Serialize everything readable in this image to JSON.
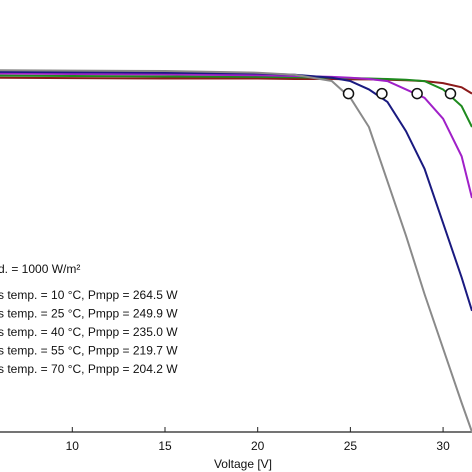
{
  "chart_data": {
    "type": "line",
    "xlabel": "Voltage [V]",
    "annotation": "d. = 1000 W/m²",
    "x": [
      6.1,
      10,
      15,
      20,
      22,
      24,
      25,
      26,
      27,
      28,
      29,
      30,
      31,
      31.56
    ],
    "xlim": [
      6.1,
      31.56
    ],
    "xticks": [
      10,
      15,
      20,
      25,
      30
    ],
    "ylim": [
      0,
      9
    ],
    "series": [
      {
        "name": "s temp. = 10 °C,  Pmpp = 264.5 W",
        "color": "#8b1a1a",
        "values": [
          8.48,
          8.47,
          8.46,
          8.46,
          8.45,
          8.45,
          8.44,
          8.44,
          8.43,
          8.42,
          8.4,
          8.35,
          8.25,
          8.1
        ]
      },
      {
        "name": "s temp. = 25 °C,  Pmpp = 249.9 W",
        "color": "#1e8a1e",
        "values": [
          8.53,
          8.52,
          8.51,
          8.5,
          8.49,
          8.48,
          8.47,
          8.46,
          8.45,
          8.43,
          8.4,
          8.2,
          7.8,
          7.3
        ]
      },
      {
        "name": "s temp. = 40 °C,  Pmpp = 235.0 W",
        "color": "#a020c8",
        "values": [
          8.58,
          8.57,
          8.56,
          8.54,
          8.52,
          8.5,
          8.48,
          8.45,
          8.4,
          8.2,
          8.0,
          7.5,
          6.6,
          5.6
        ]
      },
      {
        "name": "s temp. = 55 °C,  Pmpp = 219.7 W",
        "color": "#1a1a80",
        "values": [
          8.62,
          8.61,
          8.6,
          8.58,
          8.55,
          8.48,
          8.4,
          8.2,
          7.9,
          7.2,
          6.3,
          5.0,
          3.7,
          2.9
        ]
      },
      {
        "name": "s temp. = 70 °C,  Pmpp = 204.2 W",
        "color": "#8a8a8a",
        "values": [
          8.66,
          8.65,
          8.64,
          8.6,
          8.55,
          8.4,
          8.0,
          7.3,
          6.0,
          4.7,
          3.3,
          2.0,
          0.7,
          0.0
        ]
      }
    ],
    "mpp": {
      "x": [
        24.9,
        26.7,
        28.6,
        30.4
      ],
      "values": [
        8.1,
        8.1,
        8.1,
        8.1
      ]
    }
  }
}
